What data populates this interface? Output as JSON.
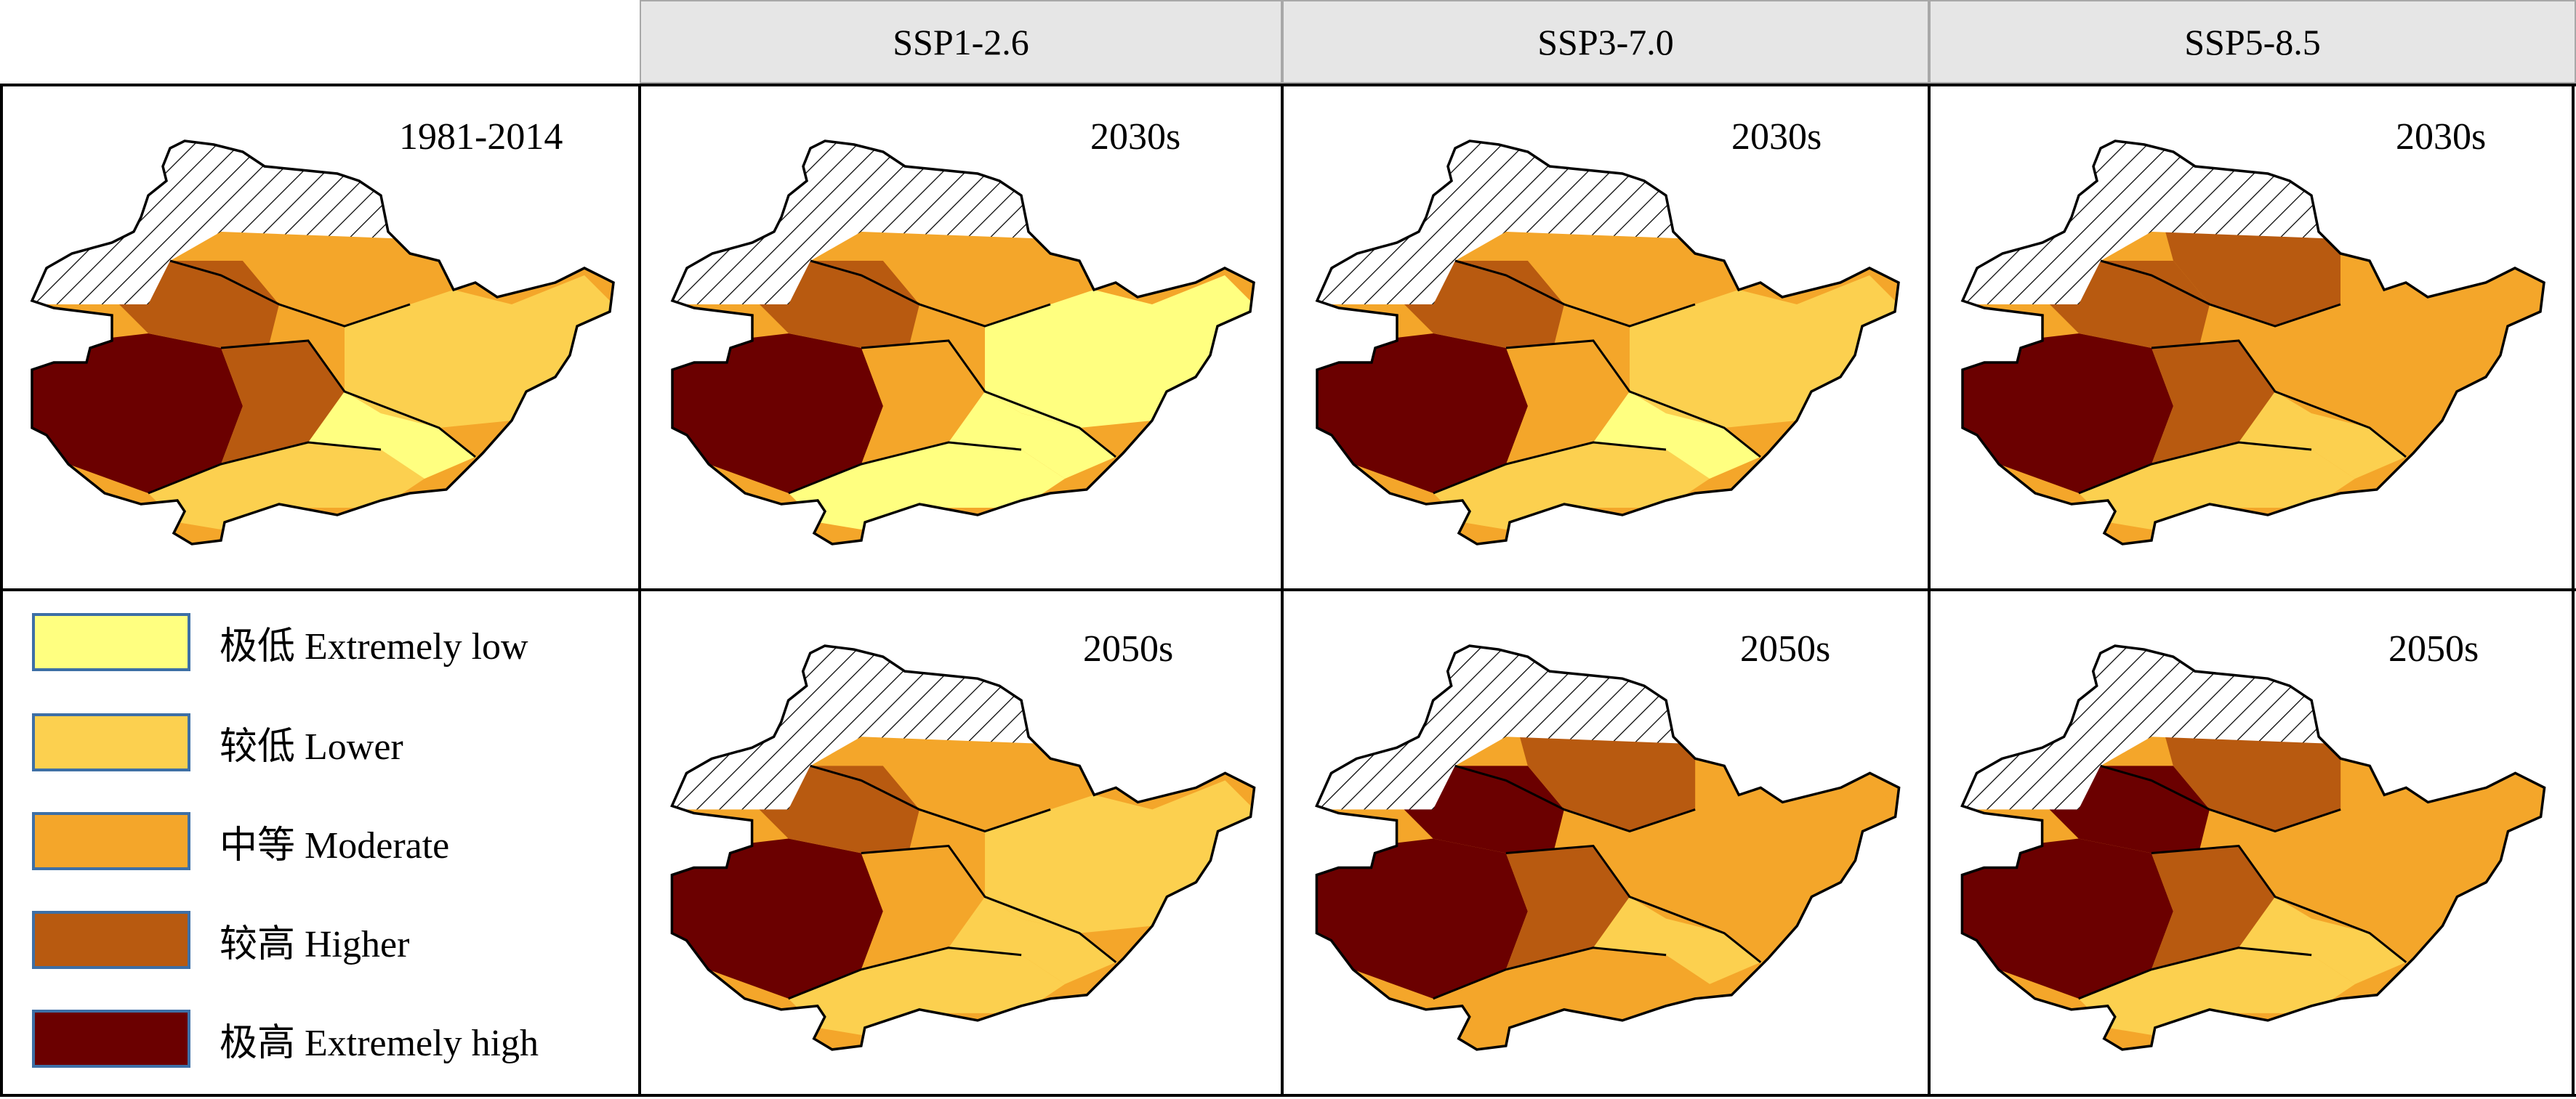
{
  "headers": [
    "SSP1-2.6",
    "SSP3-7.0",
    "SSP5-8.5"
  ],
  "panels": {
    "baseline": {
      "period": "1981-2014"
    },
    "ssp126_2030": {
      "period": "2030s"
    },
    "ssp370_2030": {
      "period": "2030s"
    },
    "ssp585_2030": {
      "period": "2030s"
    },
    "ssp126_2050": {
      "period": "2050s"
    },
    "ssp370_2050": {
      "period": "2050s"
    },
    "ssp585_2050": {
      "period": "2050s"
    }
  },
  "legend": [
    {
      "label": "极低 Extremely low",
      "color": "#ffff80"
    },
    {
      "label": "较低 Lower",
      "color": "#fcd04f"
    },
    {
      "label": "中等 Moderate",
      "color": "#f4a62a"
    },
    {
      "label": "较高 Higher",
      "color": "#b85a10"
    },
    {
      "label": "极高 Extremely high",
      "color": "#6b0000"
    }
  ],
  "colors": {
    "extremely_low": "#ffff80",
    "lower": "#fcd04f",
    "moderate": "#f4a62a",
    "higher": "#b85a10",
    "extremely_high": "#6b0000",
    "header_bg": "#e6e6e6"
  }
}
